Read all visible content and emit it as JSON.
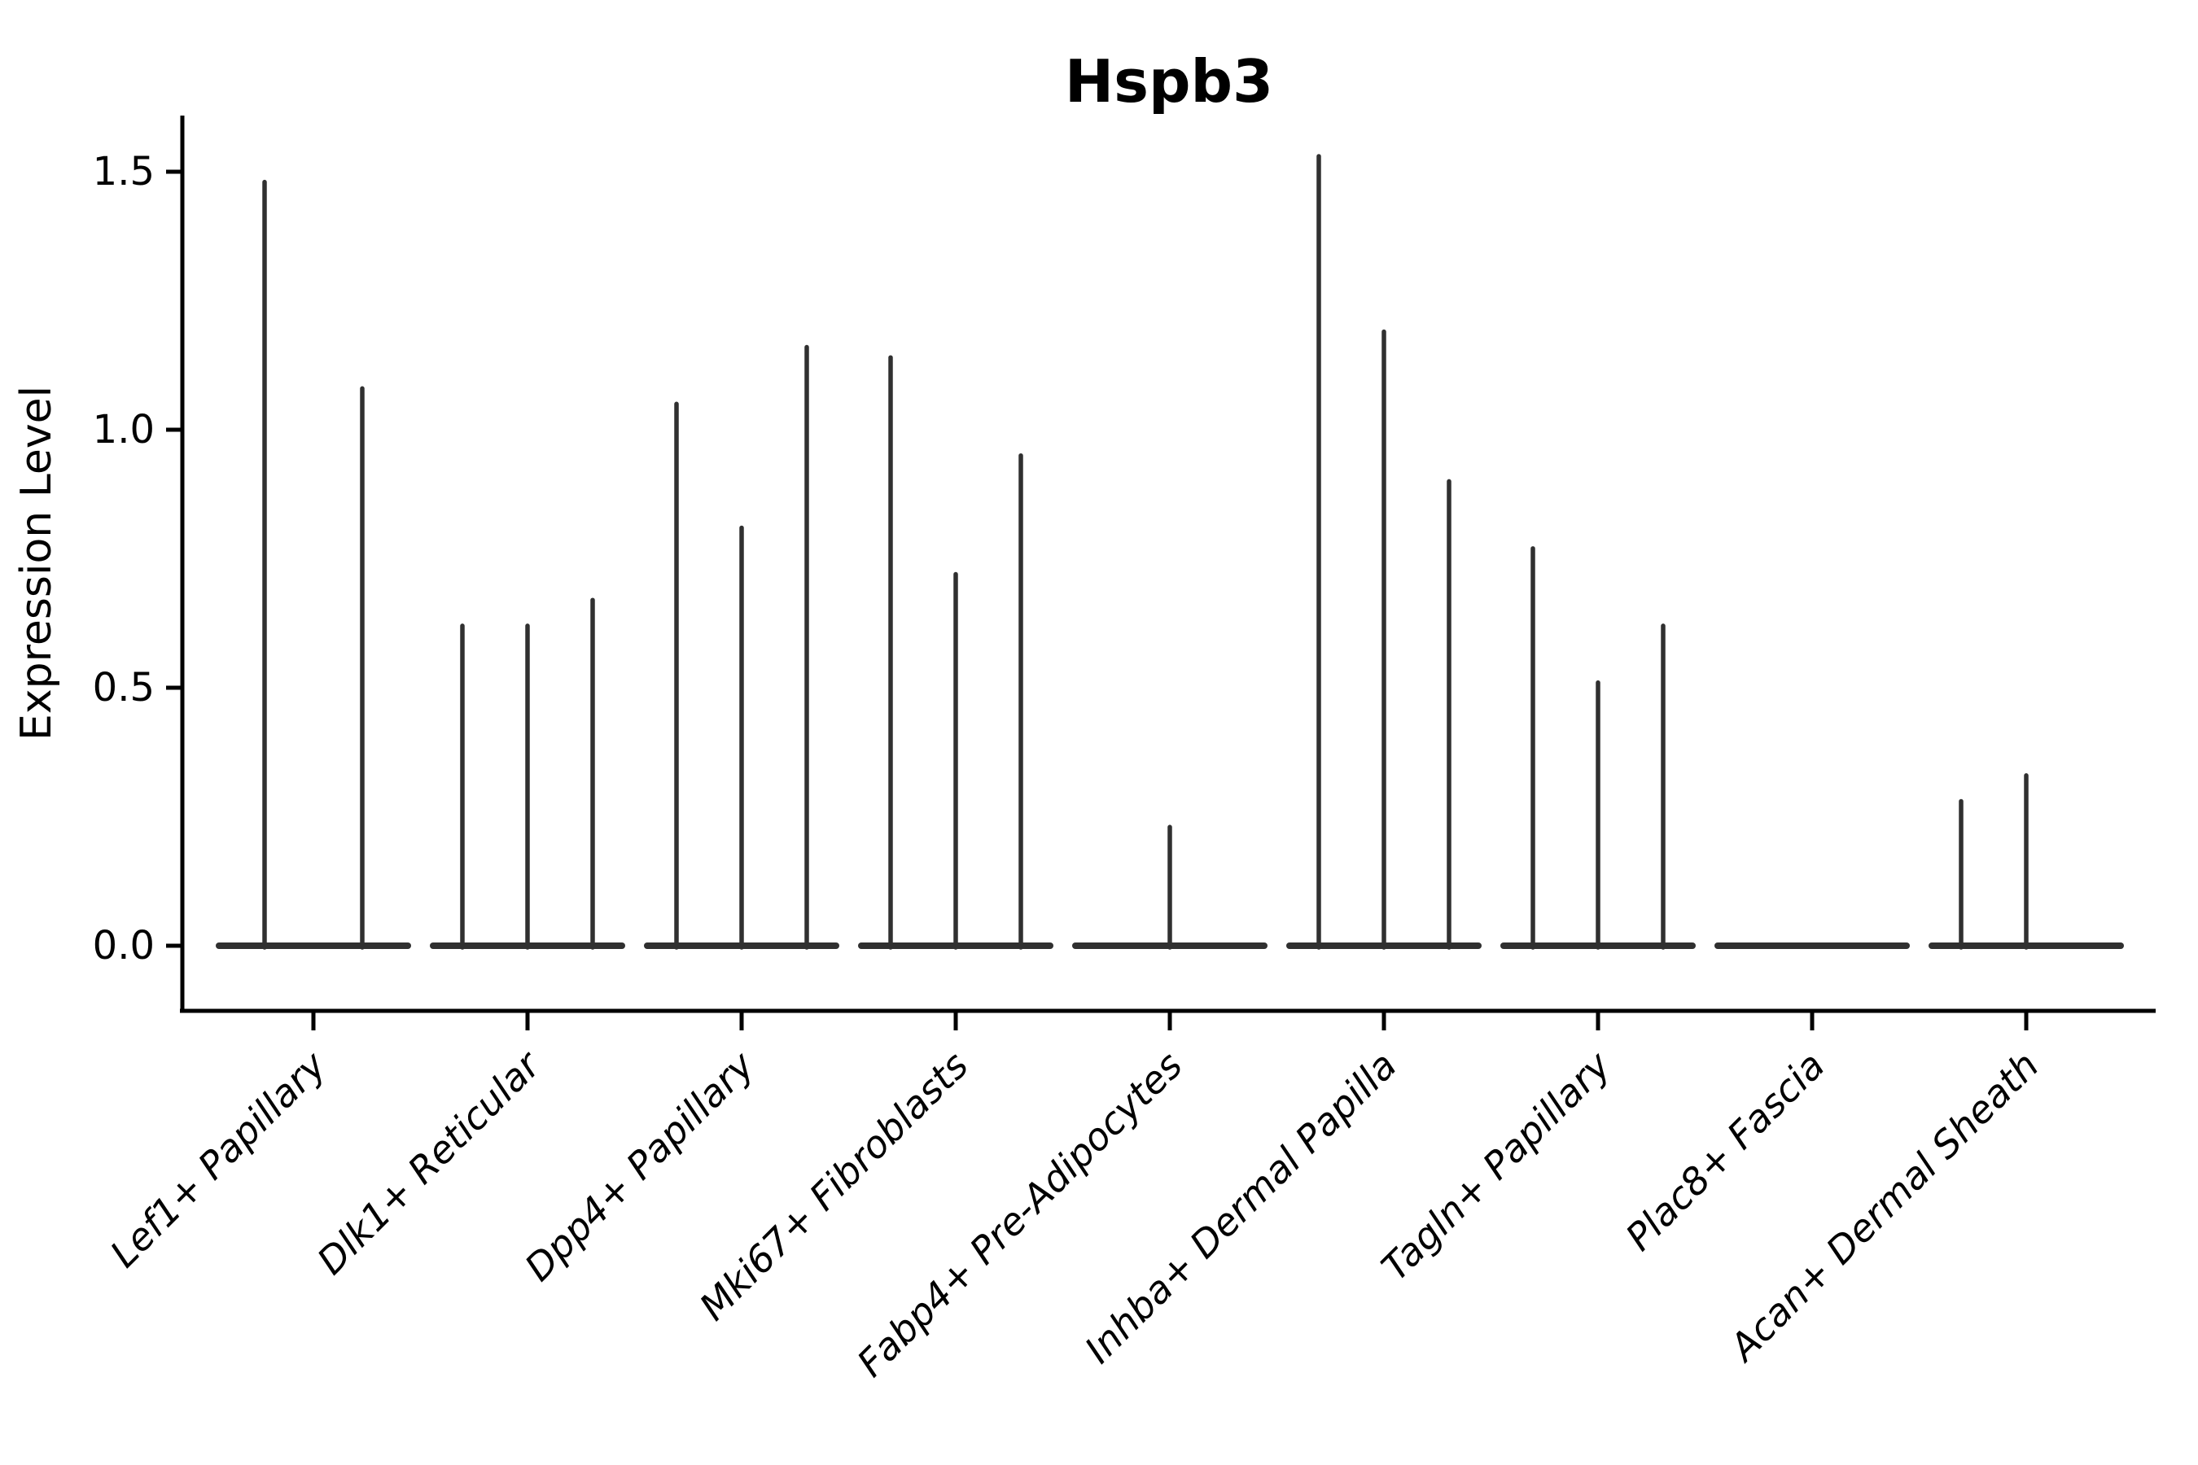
{
  "chart_data": {
    "type": "violin",
    "title": "Hspb3",
    "xlabel": "",
    "ylabel": "Expression Level",
    "yticks": [
      0.0,
      0.5,
      1.0,
      1.5
    ],
    "ytick_labels": [
      "0.0",
      "0.5",
      "1.0",
      "1.5"
    ],
    "ylim": [
      -0.13,
      1.61
    ],
    "grid": false,
    "legend": false,
    "violin_color": "#303030",
    "axis_color": "#000000",
    "description": "Each category holds 1-3 flat violins at 0 with a thin spike up to the max expression value; 0 means a flat violin with no spike.",
    "categories": [
      "Lef1+ Papillary",
      "Dlk1+ Reticular",
      "Dpp4+ Papillary",
      "Mki67+ Fibroblasts",
      "Fabp4+ Pre-Adipocytes",
      "Inhba+ Dermal Papilla",
      "Tagln+ Papillary",
      "Plac8+ Fascia",
      "Acan+ Dermal Sheath"
    ],
    "groups": [
      {
        "label": "Lef1+ Papillary",
        "violins": [
          1.48,
          1.08
        ]
      },
      {
        "label": "Dlk1+ Reticular",
        "violins": [
          0.62,
          0.62,
          0.67
        ]
      },
      {
        "label": "Dpp4+ Papillary",
        "violins": [
          1.05,
          0.81,
          1.16
        ]
      },
      {
        "label": "Mki67+ Fibroblasts",
        "violins": [
          1.14,
          0.72,
          0.95
        ]
      },
      {
        "label": "Fabp4+ Pre-Adipocytes",
        "violins": [
          0,
          0.23,
          0
        ]
      },
      {
        "label": "Inhba+ Dermal Papilla",
        "violins": [
          1.53,
          1.19,
          0.9
        ]
      },
      {
        "label": "Tagln+ Papillary",
        "violins": [
          0.77,
          0.51,
          0.62
        ]
      },
      {
        "label": "Plac8+ Fascia",
        "violins": [
          0,
          0,
          0
        ]
      },
      {
        "label": "Acan+ Dermal Sheath",
        "violins": [
          0.28,
          0.33,
          0
        ]
      }
    ]
  }
}
